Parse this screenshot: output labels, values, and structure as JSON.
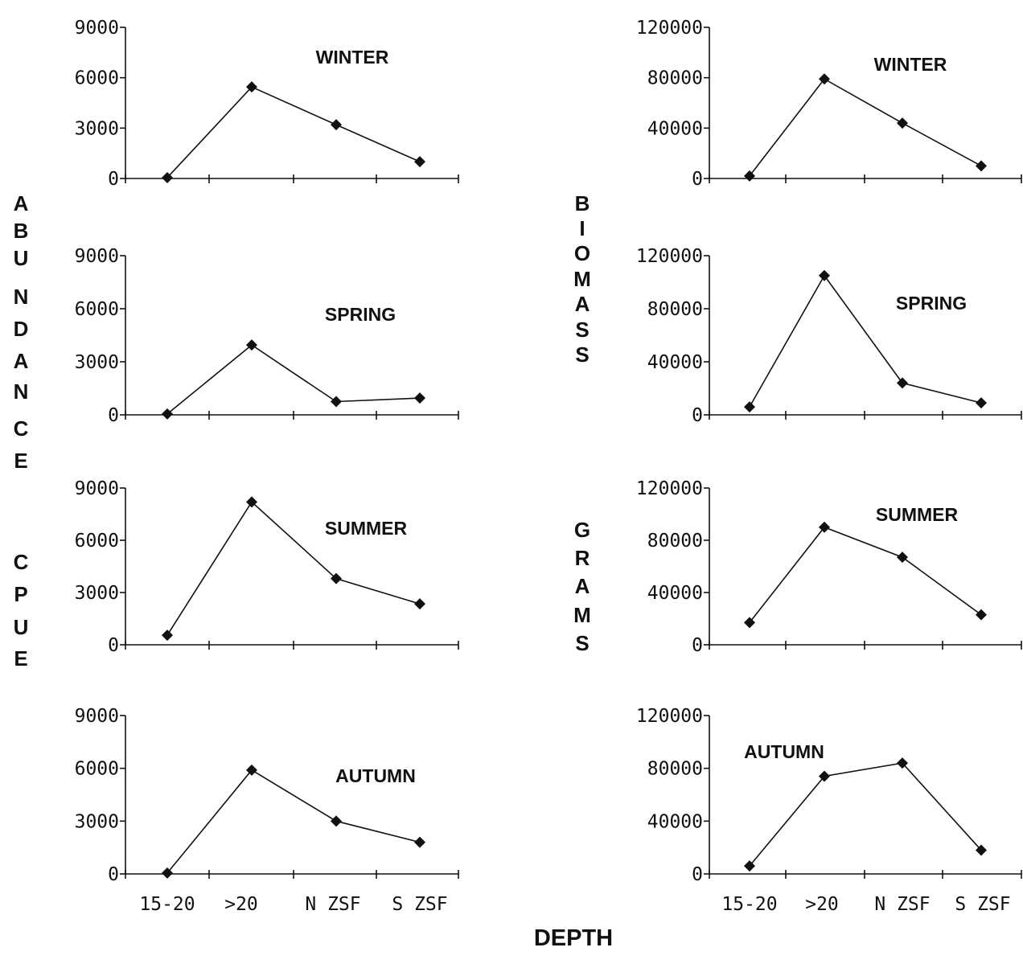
{
  "chart_data": {
    "type": "line",
    "xlabel": "DEPTH",
    "categories": [
      "15-20",
      ">20",
      "N ZSF",
      "S ZSF"
    ],
    "left_ylabel_letters": [
      "A",
      "B",
      "U",
      "N",
      "D",
      "A",
      "N",
      "C",
      "E",
      "",
      "C",
      "P",
      "U",
      "E"
    ],
    "right_ylabel_letters": [
      "B",
      "I",
      "O",
      "M",
      "A",
      "S",
      "S",
      "",
      "G",
      "R",
      "A",
      "M",
      "S"
    ],
    "left_axis": {
      "ylim": [
        0,
        9000
      ],
      "ticks": [
        "0",
        "3000",
        "6000",
        "9000"
      ]
    },
    "right_axis": {
      "ylim": [
        0,
        120000
      ],
      "ticks": [
        "0",
        "40000",
        "80000",
        "120000"
      ]
    },
    "panels": [
      {
        "column": "left",
        "label": "WINTER",
        "values": [
          50,
          5450,
          3200,
          1000
        ]
      },
      {
        "column": "left",
        "label": "SPRING",
        "values": [
          50,
          3950,
          750,
          950
        ]
      },
      {
        "column": "left",
        "label": "SUMMER",
        "values": [
          550,
          8200,
          3800,
          2350
        ]
      },
      {
        "column": "left",
        "label": "AUTUMN",
        "values": [
          50,
          5900,
          3000,
          1800
        ]
      },
      {
        "column": "right",
        "label": "WINTER",
        "values": [
          2000,
          79000,
          44000,
          10000
        ]
      },
      {
        "column": "right",
        "label": "SPRING",
        "values": [
          6000,
          105000,
          24000,
          9000
        ]
      },
      {
        "column": "right",
        "label": "SUMMER",
        "values": [
          17000,
          90000,
          67000,
          23000
        ]
      },
      {
        "column": "right",
        "label": "AUTUMN",
        "values": [
          6000,
          74000,
          84000,
          18000
        ]
      }
    ]
  }
}
